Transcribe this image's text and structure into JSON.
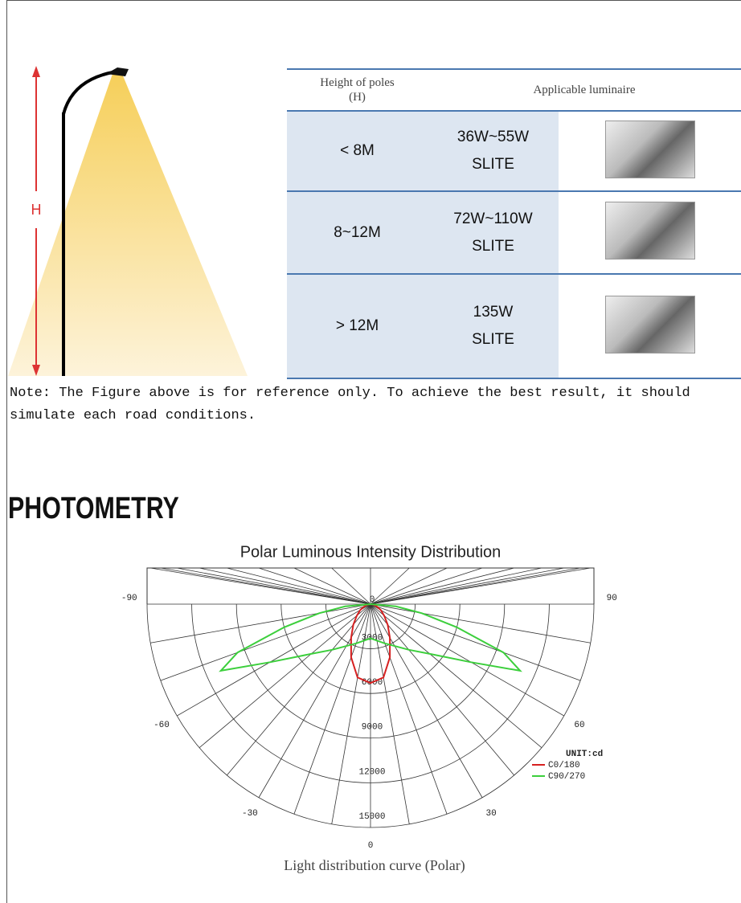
{
  "pole_label": "H",
  "table": {
    "header": [
      "Height of poles\n(H)",
      "Applicable luminaire"
    ],
    "rows": [
      [
        "< 8M",
        "36W~55W",
        "SLITE"
      ],
      [
        "8~12M",
        "72W~110W",
        "SLITE"
      ],
      [
        "> 12M",
        "135W",
        "SLITE"
      ]
    ]
  },
  "note": "Note: The Figure above is for reference only. To achieve the best result, it should\nsimulate each road conditions.",
  "section_title": "PHOTOMETRY",
  "chart_data": {
    "type": "polar",
    "title": "Polar Luminous Intensity Distribution",
    "rlim": [
      0,
      15000
    ],
    "rticks": [
      0,
      3000,
      6000,
      9000,
      12000,
      15000
    ],
    "thetaticks": [
      -90,
      -60,
      -30,
      0,
      30,
      60,
      90
    ],
    "unit": "UNIT:cd",
    "series": [
      {
        "name": "C0/180",
        "color": "#d62020",
        "theta": [
          -90,
          -80,
          -70,
          -60,
          -50,
          -40,
          -30,
          -20,
          -10,
          0,
          10,
          20,
          30,
          40,
          50,
          60,
          70,
          80,
          90
        ],
        "values": [
          0,
          200,
          450,
          800,
          1200,
          1800,
          2600,
          3800,
          5000,
          5300,
          5000,
          3800,
          2600,
          1800,
          1200,
          800,
          450,
          200,
          0
        ]
      },
      {
        "name": "C90/270",
        "color": "#3ccf3c",
        "theta": [
          -90,
          -85,
          -80,
          -75,
          -70,
          -66,
          -60,
          -50,
          -40,
          -20,
          0,
          20,
          40,
          50,
          60,
          66,
          70,
          75,
          80,
          85,
          90
        ],
        "values": [
          0,
          1700,
          3500,
          6000,
          9500,
          11000,
          7800,
          5200,
          4000,
          2800,
          2300,
          2800,
          4000,
          5200,
          7800,
          11000,
          9500,
          6000,
          3500,
          1700,
          0
        ]
      }
    ]
  },
  "caption": "Light distribution curve (Polar)"
}
